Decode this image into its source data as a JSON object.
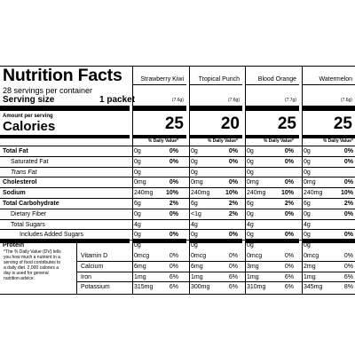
{
  "panel": {
    "title": "Nutrition Facts",
    "servings_per_container": "28 servings per container",
    "serving_size_label": "Serving size",
    "serving_size_value": "1 packet",
    "amount_per_serving": "Amount per serving",
    "calories_label": "Calories",
    "daily_value_header": "% Daily Value*",
    "footnote": "*The % Daily Value (DV) tells you how much a nutrient in a serving of food contributes to a daily diet. 2,000 calories a day is used for general nutrition advice."
  },
  "flavors": [
    {
      "name": "Strawberry Kiwi",
      "grams": "(7.6g)",
      "calories": "25"
    },
    {
      "name": "Tropical Punch",
      "grams": "(7.6g)",
      "calories": "20"
    },
    {
      "name": "Blood Orange",
      "grams": "(7.7g)",
      "calories": "25"
    },
    {
      "name": "Watermelon",
      "grams": "(7.6g)",
      "calories": "25"
    }
  ],
  "nutrients": [
    {
      "label": "Total Fat",
      "style": "bold",
      "values": [
        {
          "amt": "0g",
          "dv": "0%"
        },
        {
          "amt": "0g",
          "dv": "0%"
        },
        {
          "amt": "0g",
          "dv": "0%"
        },
        {
          "amt": "0g",
          "dv": "0%"
        }
      ]
    },
    {
      "label": "Saturated Fat",
      "style": "indent",
      "values": [
        {
          "amt": "0g",
          "dv": "0%"
        },
        {
          "amt": "0g",
          "dv": "0%"
        },
        {
          "amt": "0g",
          "dv": "0%"
        },
        {
          "amt": "0g",
          "dv": "0%"
        }
      ]
    },
    {
      "label": "Trans Fat",
      "style": "trans",
      "values": [
        {
          "amt": "0g",
          "dv": ""
        },
        {
          "amt": "0g",
          "dv": ""
        },
        {
          "amt": "0g",
          "dv": ""
        },
        {
          "amt": "0g",
          "dv": ""
        }
      ]
    },
    {
      "label": "Cholesterol",
      "style": "bold",
      "values": [
        {
          "amt": "0mg",
          "dv": "0%"
        },
        {
          "amt": "0mg",
          "dv": "0%"
        },
        {
          "amt": "0mg",
          "dv": "0%"
        },
        {
          "amt": "0mg",
          "dv": "0%"
        }
      ]
    },
    {
      "label": "Sodium",
      "style": "bold",
      "values": [
        {
          "amt": "240mg",
          "dv": "10%"
        },
        {
          "amt": "240mg",
          "dv": "10%"
        },
        {
          "amt": "240mg",
          "dv": "10%"
        },
        {
          "amt": "240mg",
          "dv": "10%"
        }
      ]
    },
    {
      "label": "Total Carbohydrate",
      "style": "bold",
      "values": [
        {
          "amt": "6g",
          "dv": "2%"
        },
        {
          "amt": "6g",
          "dv": "2%"
        },
        {
          "amt": "6g",
          "dv": "2%"
        },
        {
          "amt": "6g",
          "dv": "2%"
        }
      ]
    },
    {
      "label": "Dietary Fiber",
      "style": "indent",
      "values": [
        {
          "amt": "0g",
          "dv": "0%"
        },
        {
          "amt": "<1g",
          "dv": "2%"
        },
        {
          "amt": "0g",
          "dv": "0%"
        },
        {
          "amt": "0g",
          "dv": "0%"
        }
      ]
    },
    {
      "label": "Total Sugars",
      "style": "indent",
      "values": [
        {
          "amt": "4g",
          "dv": ""
        },
        {
          "amt": "4g",
          "dv": ""
        },
        {
          "amt": "4g",
          "dv": ""
        },
        {
          "amt": "4g",
          "dv": ""
        }
      ]
    },
    {
      "label": "Includes Added Sugars",
      "style": "indent2",
      "values": [
        {
          "amt": "0g",
          "dv": "0%"
        },
        {
          "amt": "0g",
          "dv": "0%"
        },
        {
          "amt": "0g",
          "dv": "0%"
        },
        {
          "amt": "0g",
          "dv": "0%"
        }
      ]
    },
    {
      "label": "Protein",
      "style": "bold",
      "values": [
        {
          "amt": "0g",
          "dv": ""
        },
        {
          "amt": "0g",
          "dv": ""
        },
        {
          "amt": "0g",
          "dv": ""
        },
        {
          "amt": "0g",
          "dv": ""
        }
      ]
    }
  ],
  "vitamins": [
    {
      "label": "Vitamin D",
      "values": [
        {
          "amt": "0mcg",
          "dv": "0%"
        },
        {
          "amt": "0mcg",
          "dv": "0%"
        },
        {
          "amt": "0mcg",
          "dv": "0%"
        },
        {
          "amt": "0mcg",
          "dv": "0%"
        }
      ]
    },
    {
      "label": "Calcium",
      "values": [
        {
          "amt": "6mg",
          "dv": "0%"
        },
        {
          "amt": "6mg",
          "dv": "0%"
        },
        {
          "amt": "3mg",
          "dv": "0%"
        },
        {
          "amt": "2mg",
          "dv": "0%"
        }
      ]
    },
    {
      "label": "Iron",
      "values": [
        {
          "amt": "1mg",
          "dv": "6%"
        },
        {
          "amt": "1mg",
          "dv": "6%"
        },
        {
          "amt": "1mg",
          "dv": "6%"
        },
        {
          "amt": "1mg",
          "dv": "6%"
        }
      ]
    },
    {
      "label": "Potassium",
      "values": [
        {
          "amt": "315mg",
          "dv": "6%"
        },
        {
          "amt": "300mg",
          "dv": "6%"
        },
        {
          "amt": "310mg",
          "dv": "6%"
        },
        {
          "amt": "345mg",
          "dv": "8%"
        }
      ]
    }
  ]
}
